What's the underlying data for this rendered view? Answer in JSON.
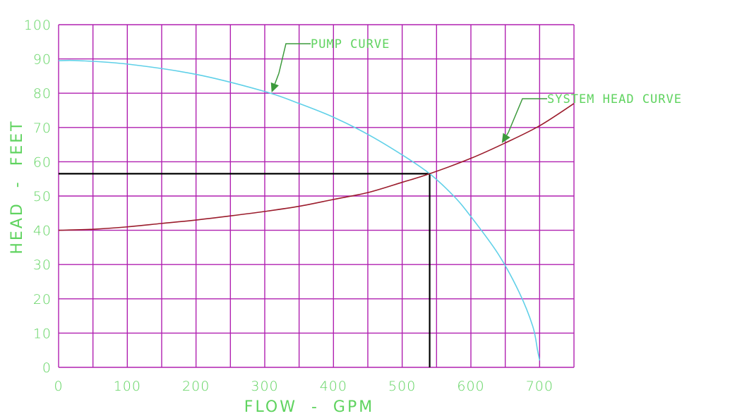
{
  "chart_data": {
    "type": "line",
    "xlabel": "FLOW  -  GPM",
    "ylabel": "HEAD  -  FEET",
    "xlim": [
      0,
      750
    ],
    "ylim": [
      0,
      100
    ],
    "x_ticks": [
      "0",
      "100",
      "200",
      "300",
      "400",
      "500",
      "600",
      "700"
    ],
    "y_ticks": [
      "0",
      "10",
      "20",
      "30",
      "40",
      "50",
      "60",
      "70",
      "80",
      "90",
      "100"
    ],
    "grid": true,
    "series": [
      {
        "name": "PUMP CURVE",
        "color": "#5fd0e8",
        "x": [
          0,
          30,
          100,
          200,
          300,
          350,
          400,
          450,
          500,
          540,
          575,
          600,
          640,
          670,
          690,
          697,
          700
        ],
        "y": [
          89.5,
          89.5,
          88.5,
          85.5,
          80.5,
          77,
          73,
          68,
          62,
          56.5,
          50,
          44,
          33,
          22,
          12,
          5,
          2
        ]
      },
      {
        "name": "SYSTEM HEAD CURVE",
        "color": "#9b1c2c",
        "x": [
          0,
          50,
          100,
          150,
          200,
          250,
          300,
          350,
          400,
          450,
          500,
          540,
          600,
          650,
          700,
          750
        ],
        "y": [
          40,
          40.3,
          41,
          42,
          43,
          44.2,
          45.5,
          47,
          49,
          51,
          54,
          56.5,
          61,
          65.5,
          70.5,
          77
        ]
      }
    ],
    "operating_point": {
      "x": 540,
      "y": 56.5,
      "color": "#000000"
    },
    "annotations": [
      {
        "text": "PUMP CURVE",
        "target_series": 0,
        "target_x": 310
      },
      {
        "text": "SYSTEM HEAD CURVE",
        "target_series": 1,
        "target_x": 645
      }
    ],
    "colors": {
      "grid": "#b020b0",
      "text": "#5fd35f",
      "arrow": "#3c9a3c"
    }
  }
}
